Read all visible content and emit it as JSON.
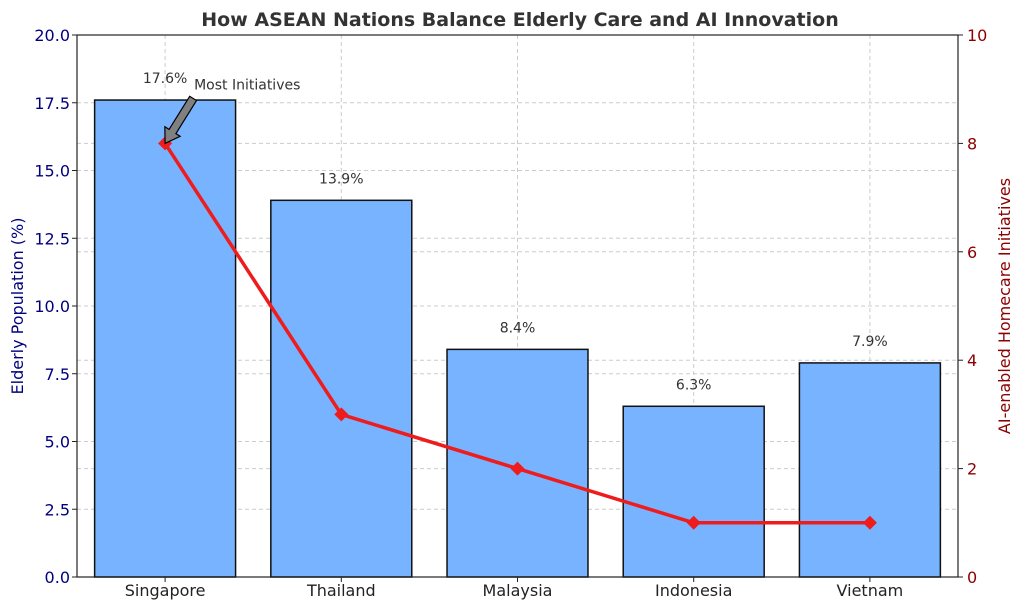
{
  "chart_data": {
    "type": "bar+line",
    "title": "How ASEAN Nations Balance Elderly Care and AI Innovation",
    "categories": [
      "Singapore",
      "Thailand",
      "Malaysia",
      "Indonesia",
      "Vietnam"
    ],
    "bar_series": {
      "name": "Elderly Population (%)",
      "values": [
        17.6,
        13.9,
        8.4,
        6.3,
        7.9
      ],
      "labels": [
        "17.6%",
        "13.9%",
        "8.4%",
        "6.3%",
        "7.9%"
      ],
      "color": "#77b3ff",
      "edge_color": "#111111"
    },
    "line_series": {
      "name": "AI-enabled Homecare Initiatives",
      "values": [
        8,
        3,
        2,
        1,
        1
      ],
      "color": "#ee1c1c",
      "marker": "diamond"
    },
    "y_left": {
      "label": "Elderly Population (%)",
      "ylim": [
        0,
        20
      ],
      "ticks": [
        "0.0",
        "2.5",
        "5.0",
        "7.5",
        "10.0",
        "12.5",
        "15.0",
        "17.5",
        "20.0"
      ],
      "color": "#00007f"
    },
    "y_right": {
      "label": "AI-enabled Homecare Initiatives",
      "ylim": [
        0,
        10
      ],
      "ticks": [
        "0",
        "2",
        "4",
        "6",
        "8",
        "10"
      ],
      "color": "#8b0000"
    },
    "grid": true,
    "annotation": {
      "text": "Most Initiatives",
      "target_category": "Singapore",
      "target_value": 8
    }
  }
}
